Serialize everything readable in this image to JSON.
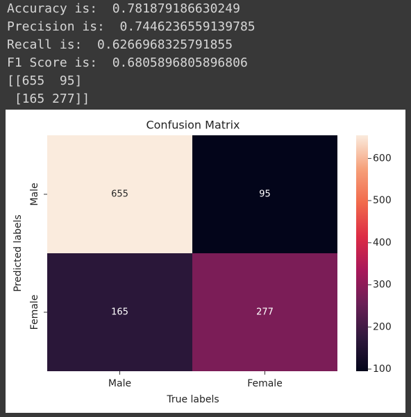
{
  "output_lines": [
    "Accuracy is:  0.781879186630249",
    "Precision is:  0.7446236559139785",
    "Recall is:  0.6266968325791855",
    "F1 Score is:  0.6805896805896806",
    "[[655  95]",
    " [165 277]]"
  ],
  "chart_data": {
    "type": "heatmap",
    "title": "Confusion Matrix",
    "x_categories": [
      "Male",
      "Female"
    ],
    "y_categories": [
      "Male",
      "Female"
    ],
    "xlabel": "True labels",
    "ylabel": "Predicted labels",
    "values": [
      [
        655,
        95
      ],
      [
        165,
        277
      ]
    ],
    "clim": [
      95,
      655
    ],
    "cticks": [
      100,
      200,
      300,
      400,
      500,
      600
    ],
    "colormap": [
      "#03051a",
      "#30193d",
      "#6a1f56",
      "#a9185a",
      "#dd2c45",
      "#f16a4c",
      "#f6a07a",
      "#faebdd"
    ]
  }
}
